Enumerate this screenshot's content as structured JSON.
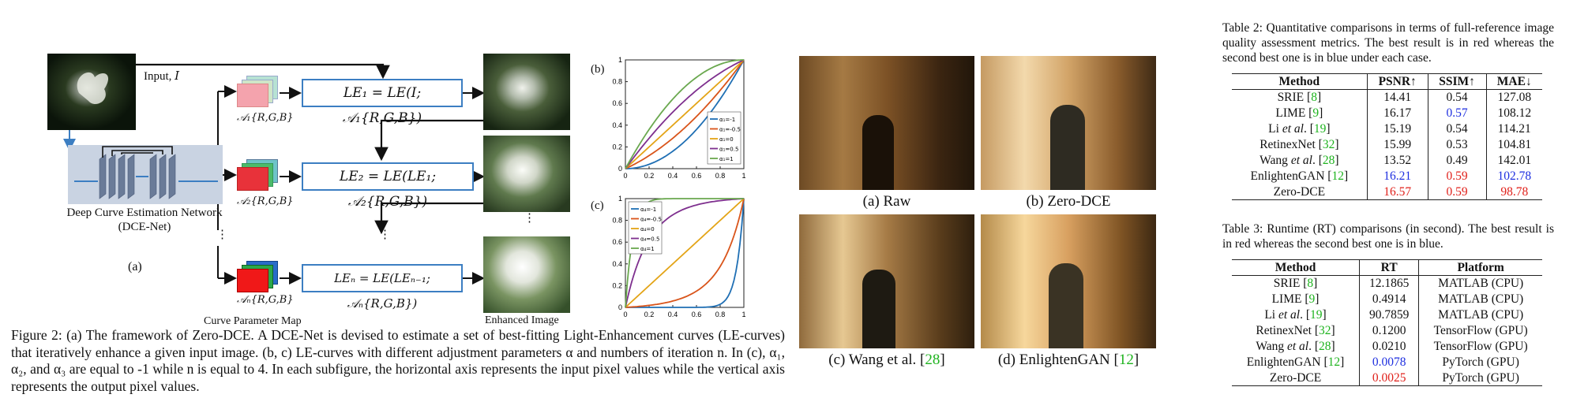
{
  "figure2": {
    "input_label": "Input, ",
    "input_symbol": "I",
    "network_label": "Deep Curve Estimation Network",
    "network_sub": "(DCE-Net)",
    "panel_a": "(a)",
    "panel_b": "(b)",
    "panel_c": "(c)",
    "curve_map_label": "Curve Parameter Map",
    "enhanced_label": "Enhanced Image",
    "a_labels": [
      "𝒜₁{R,G,B}",
      "𝒜₂{R,G,B}",
      "𝒜ₙ{R,G,B}"
    ],
    "le_eq": [
      "LE₁ = LE(I; 𝒜₁{R,G,B})",
      "LE₂ = LE(LE₁; 𝒜₂{R,G,B})",
      "LEₙ = LE(LEₙ₋₁; 𝒜ₙ{R,G,B})"
    ],
    "caption": "Figure 2: (a) The framework of Zero-DCE. A DCE-Net is devised to estimate a set of best-fitting Light-Enhancement curves (LE-curves) that iteratively enhance a given input image. (b, c) LE-curves with different adjustment parameters α and numbers of iteration n. In (c), α₁, α₂, and α₃ are equal to -1 while n is equal to 4. In each subfigure, the horizontal axis represents the input pixel values while the vertical axis represents the output pixel values.",
    "colors": {
      "box_blue": "#3c7ec2",
      "net_bg": "#c9d3e2",
      "layer": "#6a7b98",
      "pink": "#f4a3ad",
      "red": "#e8323a",
      "green": "#4cba6a",
      "teal": "#6ec4c8"
    }
  },
  "chart_data": [
    {
      "type": "line",
      "panel": "(b)",
      "x_ticks": [
        "0",
        "0.2",
        "0.4",
        "0.6",
        "0.8",
        "1"
      ],
      "y_ticks": [
        "0",
        "0.2",
        "0.4",
        "0.6",
        "0.8",
        "1"
      ],
      "xlim": [
        0,
        1
      ],
      "ylim": [
        0,
        1
      ],
      "legend_position": "bottom-right",
      "series": [
        {
          "name": "α₁=-1",
          "alpha": -1,
          "color": "#1f6fb4"
        },
        {
          "name": "α₁=-0.5",
          "alpha": -0.5,
          "color": "#d9541a"
        },
        {
          "name": "α₁=0",
          "alpha": 0,
          "color": "#e3a416"
        },
        {
          "name": "α₁=0.5",
          "alpha": 0.5,
          "color": "#7e2f8e"
        },
        {
          "name": "α₁=1",
          "alpha": 1,
          "color": "#6aa84f"
        }
      ]
    },
    {
      "type": "line",
      "panel": "(c)",
      "x_ticks": [
        "0",
        "0.2",
        "0.4",
        "0.6",
        "0.8",
        "1"
      ],
      "y_ticks": [
        "0",
        "0.2",
        "0.4",
        "0.6",
        "0.8",
        "1"
      ],
      "xlim": [
        0,
        1
      ],
      "ylim": [
        0,
        1
      ],
      "iterations": 4,
      "legend_position": "top-left",
      "series": [
        {
          "name": "α₄=-1",
          "alpha": -1,
          "color": "#1f6fb4"
        },
        {
          "name": "α₄=-0.5",
          "alpha": -0.5,
          "color": "#d9541a"
        },
        {
          "name": "α₄=0",
          "alpha": 0,
          "color": "#e3a416"
        },
        {
          "name": "α₄=0.5",
          "alpha": 0.5,
          "color": "#7e2f8e"
        },
        {
          "name": "α₄=1",
          "alpha": 1,
          "color": "#6aa84f"
        }
      ]
    }
  ],
  "figure3": {
    "captions": [
      {
        "prefix": "(a) Raw",
        "ref": ""
      },
      {
        "prefix": "(b) Zero-DCE",
        "ref": ""
      },
      {
        "prefix": "(c) Wang et al. [",
        "ref": "28",
        "suffix": "]"
      },
      {
        "prefix": "(d) EnlightenGAN [",
        "ref": "12",
        "suffix": "]"
      }
    ]
  },
  "table2": {
    "caption": "Table 2: Quantitative comparisons in terms of full-reference image quality assessment metrics. The best result is in red whereas the second best one is in blue under each case.",
    "headers": [
      "Method",
      "PSNR↑",
      "SSIM↑",
      "MAE↓"
    ],
    "rows": [
      {
        "name": "SRIE",
        "ref": "8",
        "v": [
          "14.41",
          "0.54",
          "127.08"
        ],
        "c": [
          "",
          "",
          ""
        ]
      },
      {
        "name": "LIME",
        "ref": "9",
        "v": [
          "16.17",
          "0.57",
          "108.12"
        ],
        "c": [
          "",
          "blue",
          ""
        ]
      },
      {
        "name": "Li et al.",
        "ref": "19",
        "v": [
          "15.19",
          "0.54",
          "114.21"
        ],
        "c": [
          "",
          "",
          ""
        ]
      },
      {
        "name": "RetinexNet",
        "ref": "32",
        "v": [
          "15.99",
          "0.53",
          "104.81"
        ],
        "c": [
          "",
          "",
          ""
        ]
      },
      {
        "name": "Wang et al.",
        "ref": "28",
        "v": [
          "13.52",
          "0.49",
          "142.01"
        ],
        "c": [
          "",
          "",
          ""
        ]
      },
      {
        "name": "EnlightenGAN",
        "ref": "12",
        "v": [
          "16.21",
          "0.59",
          "102.78"
        ],
        "c": [
          "blue",
          "red",
          "blue"
        ]
      },
      {
        "name": "Zero-DCE",
        "ref": "",
        "v": [
          "16.57",
          "0.59",
          "98.78"
        ],
        "c": [
          "red",
          "red",
          "red"
        ]
      }
    ]
  },
  "table3": {
    "caption": "Table 3: Runtime (RT) comparisons (in second). The best result is in red whereas the second best one is in blue.",
    "headers": [
      "Method",
      "RT",
      "Platform"
    ],
    "rows": [
      {
        "name": "SRIE",
        "ref": "8",
        "v": [
          "12.1865",
          "MATLAB (CPU)"
        ],
        "c": [
          "",
          ""
        ]
      },
      {
        "name": "LIME",
        "ref": "9",
        "v": [
          "0.4914",
          "MATLAB (CPU)"
        ],
        "c": [
          "",
          ""
        ]
      },
      {
        "name": "Li et al.",
        "ref": "19",
        "v": [
          "90.7859",
          "MATLAB (CPU)"
        ],
        "c": [
          "",
          ""
        ]
      },
      {
        "name": "RetinexNet",
        "ref": "32",
        "v": [
          "0.1200",
          "TensorFlow (GPU)"
        ],
        "c": [
          "",
          ""
        ]
      },
      {
        "name": "Wang et al.",
        "ref": "28",
        "v": [
          "0.0210",
          "TensorFlow (GPU)"
        ],
        "c": [
          "",
          ""
        ]
      },
      {
        "name": "EnlightenGAN",
        "ref": "12",
        "v": [
          "0.0078",
          "PyTorch (GPU)"
        ],
        "c": [
          "blue",
          ""
        ]
      },
      {
        "name": "Zero-DCE",
        "ref": "",
        "v": [
          "0.0025",
          "PyTorch (GPU)"
        ],
        "c": [
          "red",
          ""
        ]
      }
    ]
  }
}
